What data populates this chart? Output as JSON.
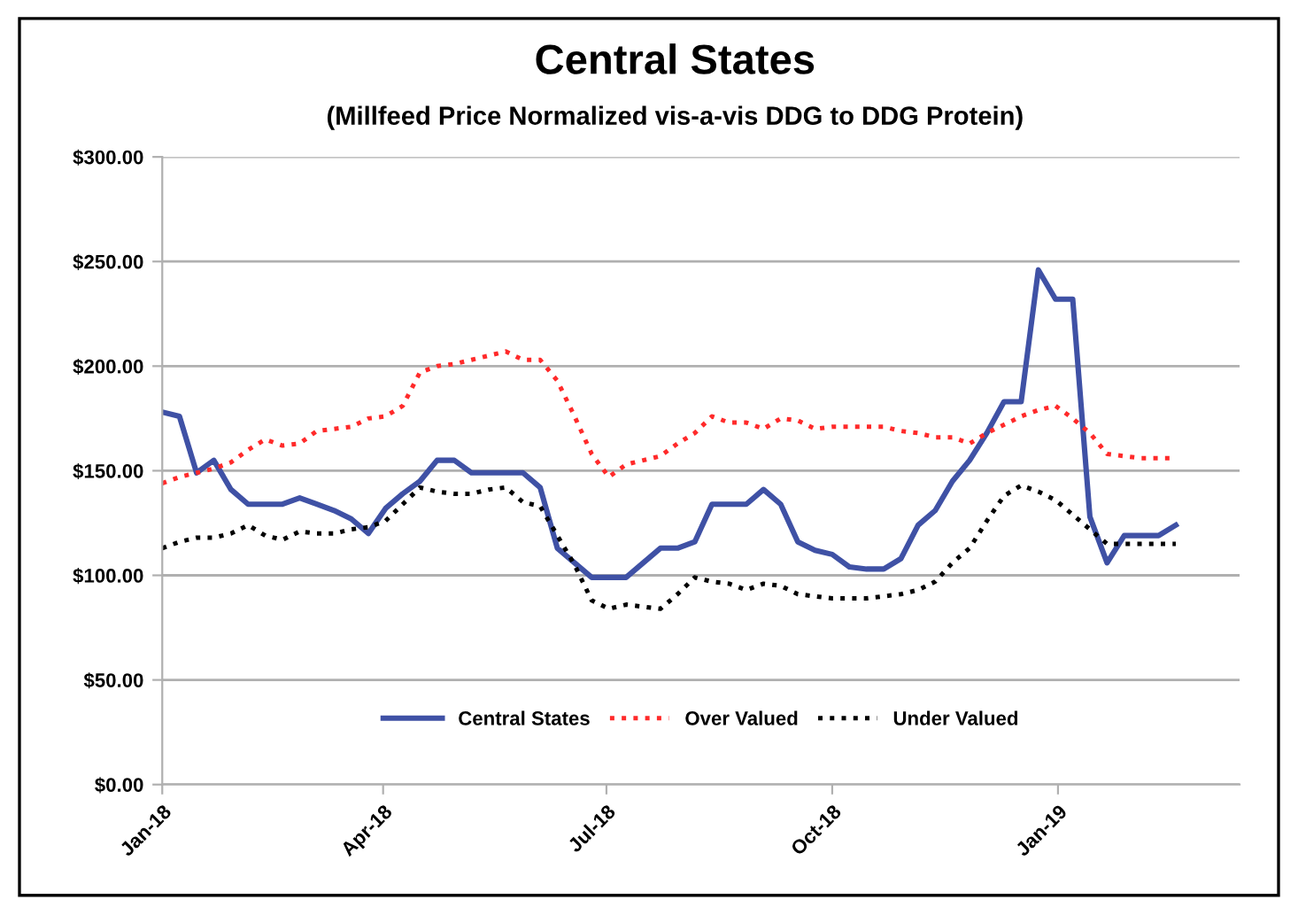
{
  "chart_data": {
    "type": "line",
    "title": "Central States",
    "subtitle": "(Millfeed Price Normalized vis-a-vis DDG to DDG Protein)",
    "x": [
      "2018-01-01",
      "2018-01-08",
      "2018-01-15",
      "2018-01-22",
      "2018-01-29",
      "2018-02-05",
      "2018-02-12",
      "2018-02-19",
      "2018-02-26",
      "2018-03-05",
      "2018-03-12",
      "2018-03-19",
      "2018-03-26",
      "2018-04-02",
      "2018-04-09",
      "2018-04-16",
      "2018-04-23",
      "2018-04-30",
      "2018-05-07",
      "2018-05-14",
      "2018-05-21",
      "2018-05-28",
      "2018-06-04",
      "2018-06-11",
      "2018-06-18",
      "2018-06-25",
      "2018-07-02",
      "2018-07-09",
      "2018-07-16",
      "2018-07-23",
      "2018-07-30",
      "2018-08-06",
      "2018-08-13",
      "2018-08-20",
      "2018-08-27",
      "2018-09-03",
      "2018-09-10",
      "2018-09-17",
      "2018-09-24",
      "2018-10-01",
      "2018-10-08",
      "2018-10-15",
      "2018-10-22",
      "2018-10-29",
      "2018-11-05",
      "2018-11-12",
      "2018-11-19",
      "2018-11-26",
      "2018-12-03",
      "2018-12-10",
      "2018-12-17",
      "2018-12-24",
      "2018-12-31",
      "2019-01-07",
      "2019-01-14",
      "2019-01-21",
      "2019-01-28",
      "2019-02-04",
      "2019-02-11",
      "2019-02-18"
    ],
    "series": [
      {
        "name": "Central States",
        "color": "#3f51a5",
        "line_style": "solid",
        "values": [
          178,
          176,
          149,
          155,
          141,
          134,
          134,
          134,
          137,
          134,
          131,
          127,
          120,
          132,
          139,
          145,
          155,
          155,
          149,
          149,
          149,
          149,
          142,
          113,
          106,
          99,
          99,
          99,
          106,
          113,
          113,
          116,
          134,
          134,
          134,
          141,
          134,
          116,
          112,
          110,
          104,
          103,
          103,
          108,
          124,
          131,
          145,
          155,
          168,
          183,
          183,
          246,
          232,
          232,
          128,
          106,
          119,
          119,
          119,
          124
        ]
      },
      {
        "name": "Over Valued",
        "color": "#ff2a2a",
        "line_style": "dotted",
        "values": [
          144,
          147,
          149,
          151,
          154,
          160,
          165,
          162,
          163,
          169,
          170,
          171,
          175,
          176,
          181,
          197,
          200,
          201,
          203,
          205,
          207,
          203,
          203,
          193,
          176,
          158,
          147,
          153,
          155,
          157,
          163,
          168,
          176,
          173,
          173,
          170,
          175,
          174,
          170,
          171,
          171,
          171,
          171,
          169,
          168,
          166,
          166,
          163,
          168,
          172,
          176,
          179,
          181,
          175,
          168,
          158,
          157,
          156,
          156,
          156
        ]
      },
      {
        "name": "Under Valued",
        "color": "#000000",
        "line_style": "dotted",
        "values": [
          113,
          116,
          118,
          118,
          120,
          124,
          119,
          117,
          121,
          120,
          120,
          122,
          123,
          126,
          134,
          142,
          140,
          139,
          139,
          141,
          142,
          135,
          133,
          119,
          105,
          88,
          84,
          86,
          85,
          84,
          91,
          99,
          97,
          96,
          93,
          96,
          95,
          91,
          90,
          89,
          89,
          89,
          90,
          91,
          93,
          97,
          106,
          113,
          126,
          138,
          143,
          140,
          136,
          129,
          122,
          115,
          115,
          115,
          115,
          115
        ]
      }
    ],
    "xlim": [
      "2018-01-01",
      "2019-03-16"
    ],
    "xticks": [
      {
        "value": "2018-01-01",
        "label": "Jan-18"
      },
      {
        "value": "2018-04-01",
        "label": "Apr-18"
      },
      {
        "value": "2018-07-01",
        "label": "Jul-18"
      },
      {
        "value": "2018-10-01",
        "label": "Oct-18"
      },
      {
        "value": "2019-01-01",
        "label": "Jan-19"
      }
    ],
    "ylim": [
      0,
      300
    ],
    "yticks": [
      {
        "value": 0,
        "label": "$0.00"
      },
      {
        "value": 50,
        "label": "$50.00"
      },
      {
        "value": 100,
        "label": "$100.00"
      },
      {
        "value": 150,
        "label": "$150.00"
      },
      {
        "value": 200,
        "label": "$200.00"
      },
      {
        "value": 250,
        "label": "$250.00"
      },
      {
        "value": 300,
        "label": "$300.00"
      }
    ],
    "grid": "y",
    "legend": "bottom"
  }
}
